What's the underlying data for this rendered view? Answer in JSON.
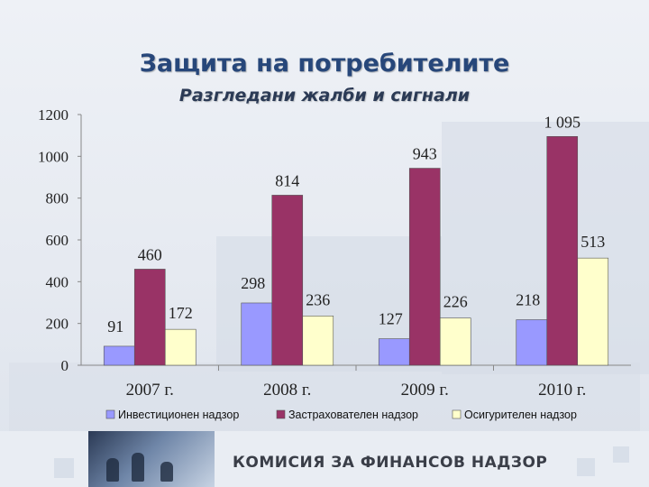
{
  "title": "Защита на потребителите",
  "subtitle": "Разгледани жалби и сигнали",
  "footer": {
    "brand": "КОМИСИЯ ЗА ФИНАНСОВ НАДЗОР"
  },
  "chart_data": {
    "type": "bar",
    "categories": [
      "2007 г.",
      "2008 г.",
      "2009 г.",
      "2010 г."
    ],
    "series": [
      {
        "name": "Инвестиционен надзор",
        "values": [
          91,
          298,
          127,
          218
        ],
        "labels": [
          "91",
          "298",
          "127",
          "218"
        ],
        "color": "#9999ff"
      },
      {
        "name": "Застрахователен надзор",
        "values": [
          460,
          814,
          943,
          1095
        ],
        "labels": [
          "460",
          "814",
          "943",
          "1 095"
        ],
        "color": "#993366"
      },
      {
        "name": "Осигурителен надзор",
        "values": [
          172,
          236,
          226,
          513
        ],
        "labels": [
          "172",
          "236",
          "226",
          "513"
        ],
        "color": "#ffffcc"
      }
    ],
    "yticks": [
      "0",
      "200",
      "400",
      "600",
      "800",
      "1000",
      "1200"
    ],
    "ylim": [
      0,
      1200
    ],
    "grid": false,
    "legend": "bottom"
  }
}
